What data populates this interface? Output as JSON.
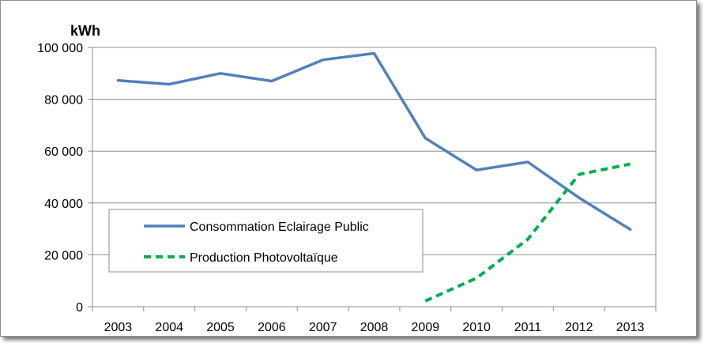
{
  "chart_data": {
    "type": "line",
    "title": "",
    "ylabel": "kWh",
    "xlabel": "",
    "categories": [
      "2003",
      "2004",
      "2005",
      "2006",
      "2007",
      "2008",
      "2009",
      "2010",
      "2011",
      "2012",
      "2013"
    ],
    "ylim": [
      0,
      100000
    ],
    "yticks": [
      0,
      20000,
      40000,
      60000,
      80000,
      100000
    ],
    "ytick_labels": [
      "0",
      "20 000",
      "40 000",
      "60 000",
      "80 000",
      "100 000"
    ],
    "grid": true,
    "legend_position": "bottom-left",
    "series": [
      {
        "name": "Consommation Eclairage Public",
        "color": "#4f81bd",
        "style": "solid",
        "values": [
          87300,
          85800,
          90000,
          87000,
          95200,
          97700,
          65000,
          52700,
          55800,
          42000,
          29800
        ]
      },
      {
        "name": "Production Photovoltaïque",
        "color": "#00b050",
        "style": "dashed",
        "values": [
          null,
          null,
          null,
          null,
          null,
          null,
          2200,
          11000,
          26000,
          51000,
          55000
        ]
      }
    ]
  }
}
